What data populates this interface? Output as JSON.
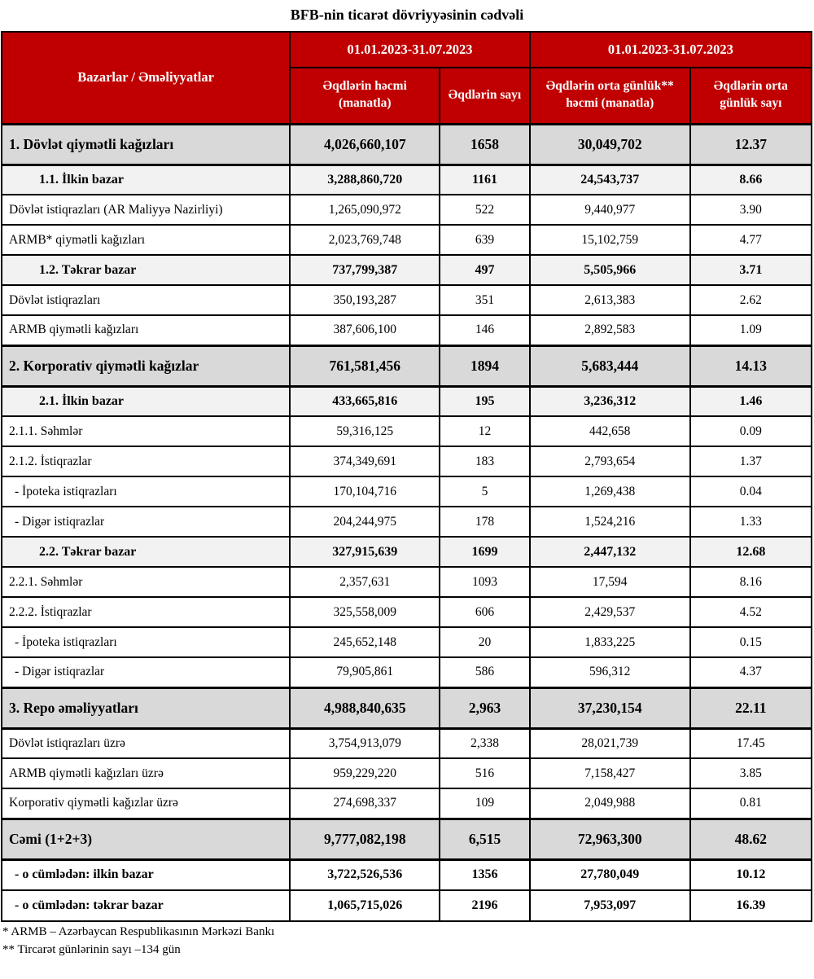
{
  "title": "BFB-nin ticarət dövriyyəsinin cədvəli",
  "colors": {
    "header_red": "#C00000",
    "section_gray": "#D9D9D9",
    "subsection_gray": "#F2F2F2",
    "border_black": "#000000"
  },
  "table": {
    "row_header": "Bazarlar / Əməliyyatlar",
    "group_headers": [
      "01.01.2023-31.07.2023",
      "01.01.2023-31.07.2023"
    ],
    "col_headers": [
      "Əqdlərin həcmi (manatla)",
      "Əqdlərin sayı",
      "Əqdlərin orta günlük** həcmi (manatla)",
      "Əqdlərin orta günlük sayı"
    ],
    "rows": [
      {
        "label": "1. Dövlət qiymətli kağızları",
        "style": "section",
        "values": [
          "4,026,660,107",
          "1658",
          "30,049,702",
          "12.37"
        ]
      },
      {
        "label": "1.1. İlkin bazar",
        "style": "subsection",
        "values": [
          "3,288,860,720",
          "1161",
          "24,543,737",
          "8.66"
        ]
      },
      {
        "label": "Dövlət istiqrazları (AR Maliyyə Nazirliyi)",
        "style": "normal",
        "values": [
          "1,265,090,972",
          "522",
          "9,440,977",
          "3.90"
        ]
      },
      {
        "label": "ARMB* qiymətli kağızları",
        "style": "normal",
        "values": [
          "2,023,769,748",
          "639",
          "15,102,759",
          "4.77"
        ]
      },
      {
        "label": "1.2. Təkrar bazar",
        "style": "subsection",
        "values": [
          "737,799,387",
          "497",
          "5,505,966",
          "3.71"
        ]
      },
      {
        "label": "Dövlət istiqrazları",
        "style": "normal",
        "values": [
          "350,193,287",
          "351",
          "2,613,383",
          "2.62"
        ]
      },
      {
        "label": "ARMB qiymətli kağızları",
        "style": "normal",
        "values": [
          "387,606,100",
          "146",
          "2,892,583",
          "1.09"
        ]
      },
      {
        "label": "2. Korporativ qiymətli kağızlar",
        "style": "section",
        "values": [
          "761,581,456",
          "1894",
          "5,683,444",
          "14.13"
        ]
      },
      {
        "label": "2.1. İlkin bazar",
        "style": "subsection",
        "values": [
          "433,665,816",
          "195",
          "3,236,312",
          "1.46"
        ]
      },
      {
        "label": "2.1.1. Səhmlər",
        "style": "normal",
        "values": [
          "59,316,125",
          "12",
          "442,658",
          "0.09"
        ]
      },
      {
        "label": "2.1.2. İstiqrazlar",
        "style": "normal",
        "values": [
          "374,349,691",
          "183",
          "2,793,654",
          "1.37"
        ]
      },
      {
        "label": "- İpoteka istiqrazları",
        "style": "indent",
        "values": [
          "170,104,716",
          "5",
          "1,269,438",
          "0.04"
        ]
      },
      {
        "label": "- Digər istiqrazlar",
        "style": "indent",
        "values": [
          "204,244,975",
          "178",
          "1,524,216",
          "1.33"
        ]
      },
      {
        "label": "2.2. Təkrar bazar",
        "style": "subsection",
        "values": [
          "327,915,639",
          "1699",
          "2,447,132",
          "12.68"
        ]
      },
      {
        "label": "2.2.1. Səhmlər",
        "style": "normal",
        "values": [
          "2,357,631",
          "1093",
          "17,594",
          "8.16"
        ]
      },
      {
        "label": "2.2.2. İstiqrazlar",
        "style": "normal",
        "values": [
          "325,558,009",
          "606",
          "2,429,537",
          "4.52"
        ]
      },
      {
        "label": "- İpoteka istiqrazları",
        "style": "indent",
        "values": [
          "245,652,148",
          "20",
          "1,833,225",
          "0.15"
        ]
      },
      {
        "label": "- Digər istiqrazlar",
        "style": "indent",
        "values": [
          "79,905,861",
          "586",
          "596,312",
          "4.37"
        ]
      },
      {
        "label": "3. Repo əməliyyatları",
        "style": "section",
        "values": [
          "4,988,840,635",
          "2,963",
          "37,230,154",
          "22.11"
        ]
      },
      {
        "label": "Dövlət istiqrazları üzrə",
        "style": "normal",
        "values": [
          "3,754,913,079",
          "2,338",
          "28,021,739",
          "17.45"
        ]
      },
      {
        "label": "ARMB qiymətli kağızları üzrə",
        "style": "normal",
        "values": [
          "959,229,220",
          "516",
          "7,158,427",
          "3.85"
        ]
      },
      {
        "label": "Korporativ qiymətli kağızlar üzrə",
        "style": "normal",
        "values": [
          "274,698,337",
          "109",
          "2,049,988",
          "0.81"
        ]
      },
      {
        "label": "Cəmi (1+2+3)",
        "style": "total",
        "values": [
          "9,777,082,198",
          "6,515",
          "72,963,300",
          "48.62"
        ]
      },
      {
        "label": "- o cümlədən: ilkin bazar",
        "style": "boldsub",
        "values": [
          "3,722,526,536",
          "1356",
          "27,780,049",
          "10.12"
        ]
      },
      {
        "label": "- o cümlədən: təkrar bazar",
        "style": "boldsub",
        "values": [
          "1,065,715,026",
          "2196",
          "7,953,097",
          "16.39"
        ]
      }
    ]
  },
  "footnotes": [
    "* ARMB – Azərbaycan Respublikasının Mərkəzi Bankı",
    "** Tircarət günlərinin sayı –134 gün"
  ]
}
